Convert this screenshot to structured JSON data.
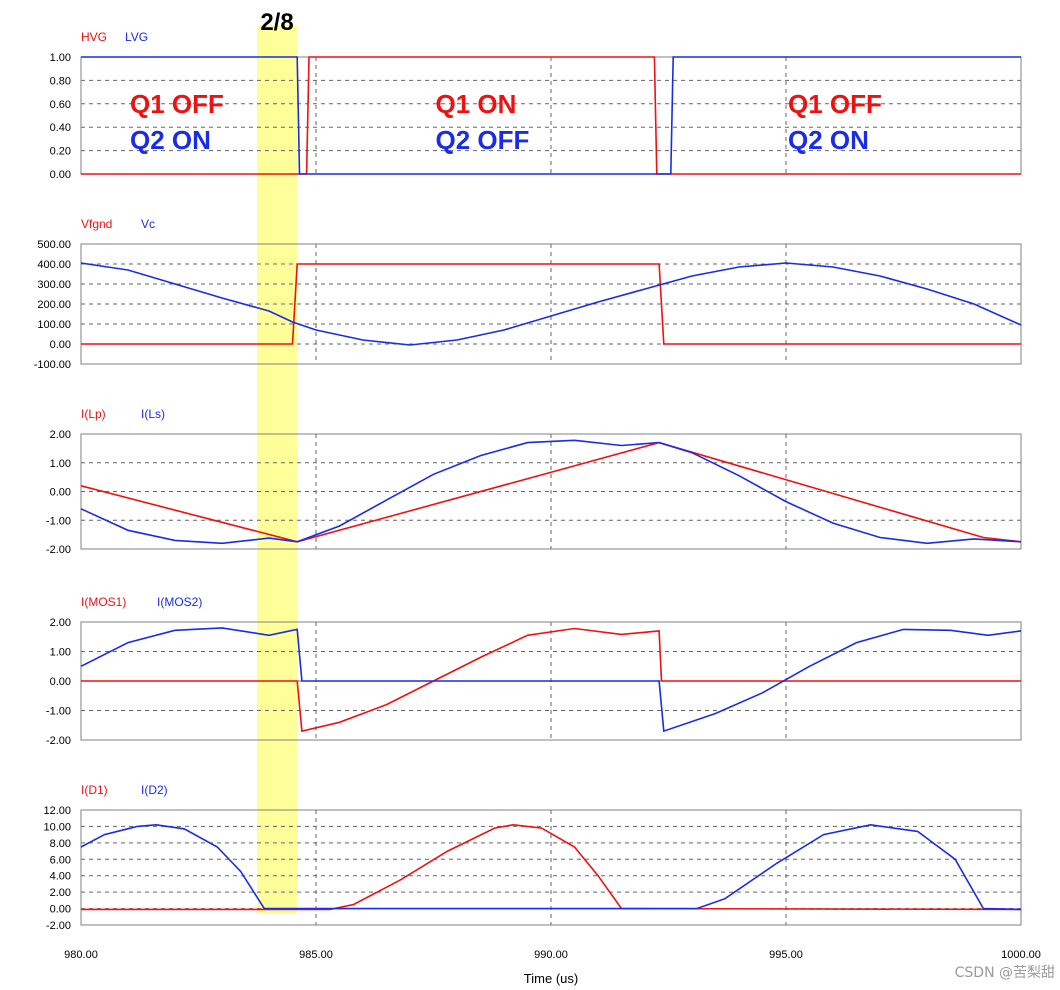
{
  "marker_label": "2/8",
  "watermark": "CSDN @苦梨甜",
  "colors": {
    "red": "#ee1111",
    "blue": "#1a2ce6",
    "highlight": "#ffff99",
    "grid": "#555555"
  },
  "chart_data": [
    {
      "type": "line",
      "series": [
        {
          "name": "HVG",
          "color": "#ee1111",
          "points": [
            [
              980,
              0
            ],
            [
              984.8,
              0
            ],
            [
              984.85,
              1
            ],
            [
              992.2,
              1
            ],
            [
              992.25,
              0
            ],
            [
              1000,
              0
            ]
          ]
        },
        {
          "name": "LVG",
          "color": "#1a2ce6",
          "points": [
            [
              980,
              1
            ],
            [
              984.6,
              1
            ],
            [
              984.65,
              0
            ],
            [
              992.55,
              0
            ],
            [
              992.6,
              1
            ],
            [
              1000,
              1
            ]
          ]
        }
      ],
      "ylim": [
        0,
        1
      ],
      "yticks": [
        "0.00",
        "0.20",
        "0.40",
        "0.60",
        "0.80",
        "1.00"
      ],
      "annotations": [
        {
          "lines": [
            {
              "text": "Q1 OFF",
              "color": "#ee1111"
            },
            {
              "text": "Q2 ON",
              "color": "#1a2ce6"
            }
          ],
          "x": 981
        },
        {
          "lines": [
            {
              "text": "Q1 ON",
              "color": "#ee1111"
            },
            {
              "text": "Q2 OFF",
              "color": "#1a2ce6"
            }
          ],
          "x": 987.5
        },
        {
          "lines": [
            {
              "text": "Q1 OFF",
              "color": "#ee1111"
            },
            {
              "text": "Q2 ON",
              "color": "#1a2ce6"
            }
          ],
          "x": 995
        }
      ]
    },
    {
      "type": "line",
      "series": [
        {
          "name": "Vfgnd",
          "color": "#ee1111",
          "points": [
            [
              980,
              0
            ],
            [
              984.5,
              0
            ],
            [
              984.6,
              400
            ],
            [
              992.3,
              400
            ],
            [
              992.4,
              0
            ],
            [
              1000,
              0
            ]
          ]
        },
        {
          "name": "Vc",
          "color": "#1a2ce6",
          "points": [
            [
              980,
              405
            ],
            [
              981,
              370
            ],
            [
              982,
              300
            ],
            [
              983,
              230
            ],
            [
              984,
              165
            ],
            [
              984.5,
              110
            ],
            [
              985,
              70
            ],
            [
              986,
              20
            ],
            [
              987,
              -5
            ],
            [
              988,
              20
            ],
            [
              989,
              70
            ],
            [
              990,
              140
            ],
            [
              991,
              210
            ],
            [
              992,
              275
            ],
            [
              993,
              340
            ],
            [
              994,
              385
            ],
            [
              995,
              405
            ],
            [
              996,
              385
            ],
            [
              997,
              340
            ],
            [
              998,
              275
            ],
            [
              999,
              200
            ],
            [
              1000,
              95
            ]
          ]
        }
      ],
      "ylim": [
        -100,
        500
      ],
      "yticks": [
        "-100.00",
        "0.00",
        "100.00",
        "200.00",
        "300.00",
        "400.00",
        "500.00"
      ]
    },
    {
      "type": "line",
      "series": [
        {
          "name": "I(Lp)",
          "color": "#ee1111",
          "points": [
            [
              980,
              0.2
            ],
            [
              984.6,
              -1.75
            ],
            [
              992.3,
              1.7
            ],
            [
              999.2,
              -1.6
            ],
            [
              1000,
              -1.75
            ]
          ]
        },
        {
          "name": "I(Ls)",
          "color": "#1a2ce6",
          "points": [
            [
              980,
              -0.6
            ],
            [
              981,
              -1.35
            ],
            [
              982,
              -1.7
            ],
            [
              983,
              -1.8
            ],
            [
              984,
              -1.62
            ],
            [
              984.6,
              -1.75
            ],
            [
              985.5,
              -1.2
            ],
            [
              986.5,
              -0.3
            ],
            [
              987.5,
              0.6
            ],
            [
              988.5,
              1.25
            ],
            [
              989.5,
              1.7
            ],
            [
              990.5,
              1.78
            ],
            [
              991.5,
              1.6
            ],
            [
              992.3,
              1.7
            ],
            [
              993,
              1.35
            ],
            [
              994,
              0.55
            ],
            [
              995,
              -0.35
            ],
            [
              996,
              -1.1
            ],
            [
              997,
              -1.6
            ],
            [
              998,
              -1.8
            ],
            [
              999,
              -1.65
            ],
            [
              1000,
              -1.75
            ]
          ]
        }
      ],
      "ylim": [
        -2,
        2
      ],
      "yticks": [
        "-2.00",
        "-1.00",
        "0.00",
        "1.00",
        "2.00"
      ]
    },
    {
      "type": "line",
      "series": [
        {
          "name": "I(MOS1)",
          "color": "#ee1111",
          "points": [
            [
              980,
              0
            ],
            [
              984.6,
              0
            ],
            [
              984.7,
              -1.7
            ],
            [
              985.5,
              -1.4
            ],
            [
              986.5,
              -0.8
            ],
            [
              987.5,
              0
            ],
            [
              988.5,
              0.8
            ],
            [
              989.5,
              1.55
            ],
            [
              990.5,
              1.78
            ],
            [
              991.5,
              1.58
            ],
            [
              992.3,
              1.7
            ],
            [
              992.35,
              0
            ],
            [
              1000,
              0
            ]
          ]
        },
        {
          "name": "I(MOS2)",
          "color": "#1a2ce6",
          "points": [
            [
              980,
              0.5
            ],
            [
              981,
              1.3
            ],
            [
              982,
              1.72
            ],
            [
              983,
              1.8
            ],
            [
              984,
              1.55
            ],
            [
              984.6,
              1.75
            ],
            [
              984.7,
              0
            ],
            [
              992.3,
              0
            ],
            [
              992.4,
              -1.7
            ],
            [
              993.5,
              -1.1
            ],
            [
              994.5,
              -0.4
            ],
            [
              995.5,
              0.5
            ],
            [
              996.5,
              1.3
            ],
            [
              997.5,
              1.75
            ],
            [
              998.5,
              1.72
            ],
            [
              999.3,
              1.55
            ],
            [
              1000,
              1.7
            ]
          ]
        }
      ],
      "ylim": [
        -2,
        2
      ],
      "yticks": [
        "-2.00",
        "-1.00",
        "0.00",
        "1.00",
        "2.00"
      ]
    },
    {
      "type": "line",
      "series": [
        {
          "name": "I(D1)",
          "color": "#ee1111",
          "points": [
            [
              980,
              -0.1
            ],
            [
              985.3,
              -0.1
            ],
            [
              985.8,
              0.5
            ],
            [
              986.8,
              3.5
            ],
            [
              987.8,
              7
            ],
            [
              988.8,
              9.8
            ],
            [
              989.2,
              10.2
            ],
            [
              989.8,
              9.8
            ],
            [
              990.5,
              7.5
            ],
            [
              991.0,
              4
            ],
            [
              991.5,
              0
            ],
            [
              1000,
              -0.1
            ]
          ]
        },
        {
          "name": "I(D2)",
          "color": "#1a2ce6",
          "points": [
            [
              980,
              7.5
            ],
            [
              980.5,
              9
            ],
            [
              981.2,
              10
            ],
            [
              981.6,
              10.2
            ],
            [
              982.2,
              9.7
            ],
            [
              982.9,
              7.5
            ],
            [
              983.4,
              4.5
            ],
            [
              983.9,
              0
            ],
            [
              993.1,
              0
            ],
            [
              993.7,
              1.2
            ],
            [
              994.8,
              5.5
            ],
            [
              995.8,
              9
            ],
            [
              996.8,
              10.2
            ],
            [
              997.8,
              9.4
            ],
            [
              998.6,
              6
            ],
            [
              999.2,
              0
            ],
            [
              1000,
              -0.1
            ]
          ]
        }
      ],
      "ylim": [
        -2,
        12
      ],
      "yticks": [
        "-2.00",
        "0.00",
        "2.00",
        "4.00",
        "6.00",
        "8.00",
        "10.00",
        "12.00"
      ],
      "xlabel": "Time (us)",
      "xticks": [
        "980.00",
        "985.00",
        "990.00",
        "995.00",
        "1000.00"
      ]
    }
  ]
}
